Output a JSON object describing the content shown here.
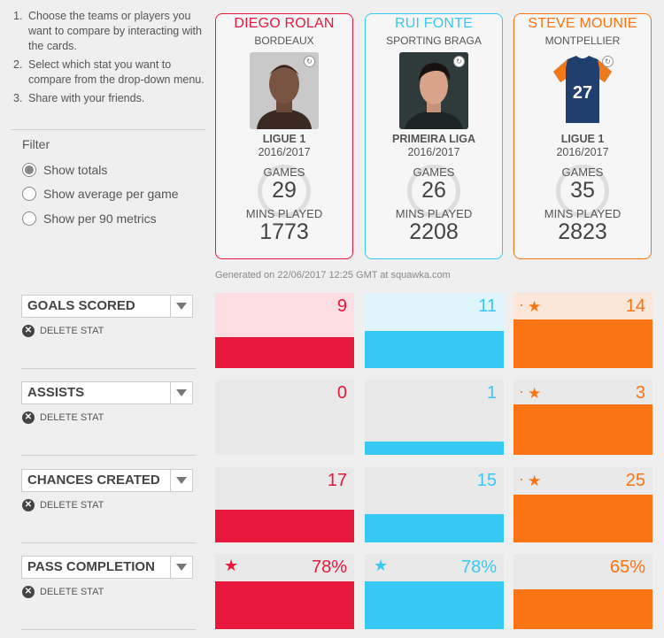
{
  "instructions": [
    {
      "num": "1.",
      "text": "Choose the teams or players you want to compare by interacting with the cards."
    },
    {
      "num": "2.",
      "text": "Select which stat you want to compare from the drop-down menu."
    },
    {
      "num": "3.",
      "text": "Share with your friends."
    }
  ],
  "filter": {
    "title": "Filter",
    "options": [
      {
        "label": "Show totals",
        "selected": true
      },
      {
        "label": "Show average per game",
        "selected": false
      },
      {
        "label": "Show per 90 metrics",
        "selected": false
      }
    ]
  },
  "players": [
    {
      "name": "DIEGO ROLAN",
      "club": "BORDEAUX",
      "league": "LIGUE 1",
      "season": "2016/2017",
      "games_label": "GAMES",
      "games": "29",
      "mins_label": "MINS PLAYED",
      "mins": "1773",
      "color": "#e8173c",
      "light": "#fbdde2",
      "photo": "player-headshot"
    },
    {
      "name": "RUI FONTE",
      "club": "SPORTING BRAGA",
      "league": "PRIMEIRA LIGA",
      "season": "2016/2017",
      "games_label": "GAMES",
      "games": "26",
      "mins_label": "MINS PLAYED",
      "mins": "2208",
      "color": "#36c9f4",
      "light": "#dff4fb",
      "photo": "player-headshot"
    },
    {
      "name": "STEVE MOUNIE",
      "club": "MONTPELLIER",
      "league": "LIGUE 1",
      "season": "2016/2017",
      "games_label": "GAMES",
      "games": "35",
      "mins_label": "MINS PLAYED",
      "mins": "2823",
      "color": "#fa7414",
      "light": "#fbe6d8",
      "photo": "jersey-27"
    }
  ],
  "generated": "Generated on 22/06/2017 12:25 GMT at squawka.com",
  "delete_label": "DELETE STAT",
  "stats": [
    {
      "name": "GOALS SCORED",
      "values": [
        "9",
        "11",
        "14"
      ],
      "fill": [
        0.41,
        0.49,
        0.65
      ],
      "best": [
        false,
        false,
        true
      ]
    },
    {
      "name": "ASSISTS",
      "values": [
        "0",
        "1",
        "3"
      ],
      "fill": [
        0.0,
        0.18,
        0.67
      ],
      "best": [
        false,
        false,
        true
      ]
    },
    {
      "name": "CHANCES CREATED",
      "values": [
        "17",
        "15",
        "25"
      ],
      "fill": [
        0.43,
        0.38,
        0.64
      ],
      "best": [
        false,
        false,
        true
      ]
    },
    {
      "name": "PASS COMPLETION",
      "values": [
        "78%",
        "78%",
        "65%"
      ],
      "fill": [
        0.64,
        0.64,
        0.53
      ],
      "best": [
        true,
        true,
        false
      ]
    }
  ]
}
